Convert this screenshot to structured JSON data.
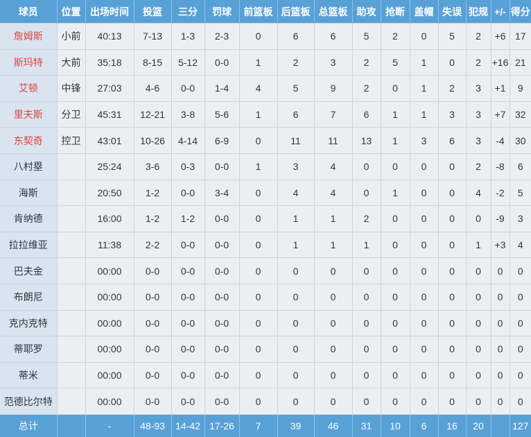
{
  "colors": {
    "header_bg": "#58a1d7",
    "total_bg": "#58a1d7",
    "row_bg": "#ebeff4",
    "player_col_bg": "#d9e4f0",
    "grid": "#ccd3db",
    "header_sep": "#8fc0e7",
    "starter_red": "#dd4540",
    "text_dark": "#2f353d",
    "header_text": "#ffffff"
  },
  "table": {
    "columns": [
      {
        "key": "player",
        "label": "球员"
      },
      {
        "key": "position",
        "label": "位置"
      },
      {
        "key": "minutes",
        "label": "出场时间"
      },
      {
        "key": "fg",
        "label": "投篮"
      },
      {
        "key": "three",
        "label": "三分"
      },
      {
        "key": "ft",
        "label": "罚球"
      },
      {
        "key": "oreb",
        "label": "前篮板"
      },
      {
        "key": "dreb",
        "label": "后篮板"
      },
      {
        "key": "treb",
        "label": "总篮板"
      },
      {
        "key": "ast",
        "label": "助攻"
      },
      {
        "key": "stl",
        "label": "抢断"
      },
      {
        "key": "blk",
        "label": "盖帽"
      },
      {
        "key": "tov",
        "label": "失误"
      },
      {
        "key": "pf",
        "label": "犯规"
      },
      {
        "key": "plusminus",
        "label": "+/-"
      },
      {
        "key": "pts",
        "label": "得分"
      }
    ],
    "rows": [
      {
        "player": "詹姆斯",
        "starter": true,
        "position": "小前",
        "minutes": "40:13",
        "fg": "7-13",
        "three": "1-3",
        "ft": "2-3",
        "oreb": "0",
        "dreb": "6",
        "treb": "6",
        "ast": "5",
        "stl": "2",
        "blk": "0",
        "tov": "5",
        "pf": "2",
        "plusminus": "+6",
        "pts": "17"
      },
      {
        "player": "斯玛特",
        "starter": true,
        "position": "大前",
        "minutes": "35:18",
        "fg": "8-15",
        "three": "5-12",
        "ft": "0-0",
        "oreb": "1",
        "dreb": "2",
        "treb": "3",
        "ast": "2",
        "stl": "5",
        "blk": "1",
        "tov": "0",
        "pf": "2",
        "plusminus": "+16",
        "pts": "21"
      },
      {
        "player": "艾顿",
        "starter": true,
        "position": "中锋",
        "minutes": "27:03",
        "fg": "4-6",
        "three": "0-0",
        "ft": "1-4",
        "oreb": "4",
        "dreb": "5",
        "treb": "9",
        "ast": "2",
        "stl": "0",
        "blk": "1",
        "tov": "2",
        "pf": "3",
        "plusminus": "+1",
        "pts": "9"
      },
      {
        "player": "里夫斯",
        "starter": true,
        "position": "分卫",
        "minutes": "45:31",
        "fg": "12-21",
        "three": "3-8",
        "ft": "5-6",
        "oreb": "1",
        "dreb": "6",
        "treb": "7",
        "ast": "6",
        "stl": "1",
        "blk": "1",
        "tov": "3",
        "pf": "3",
        "plusminus": "+7",
        "pts": "32"
      },
      {
        "player": "东契奇",
        "starter": true,
        "position": "控卫",
        "minutes": "43:01",
        "fg": "10-26",
        "three": "4-14",
        "ft": "6-9",
        "oreb": "0",
        "dreb": "11",
        "treb": "11",
        "ast": "13",
        "stl": "1",
        "blk": "3",
        "tov": "6",
        "pf": "3",
        "plusminus": "-4",
        "pts": "30"
      },
      {
        "player": "八村塁",
        "starter": false,
        "position": "",
        "minutes": "25:24",
        "fg": "3-6",
        "three": "0-3",
        "ft": "0-0",
        "oreb": "1",
        "dreb": "3",
        "treb": "4",
        "ast": "0",
        "stl": "0",
        "blk": "0",
        "tov": "0",
        "pf": "2",
        "plusminus": "-8",
        "pts": "6"
      },
      {
        "player": "海斯",
        "starter": false,
        "position": "",
        "minutes": "20:50",
        "fg": "1-2",
        "three": "0-0",
        "ft": "3-4",
        "oreb": "0",
        "dreb": "4",
        "treb": "4",
        "ast": "0",
        "stl": "1",
        "blk": "0",
        "tov": "0",
        "pf": "4",
        "plusminus": "-2",
        "pts": "5"
      },
      {
        "player": "肯纳德",
        "starter": false,
        "position": "",
        "minutes": "16:00",
        "fg": "1-2",
        "three": "1-2",
        "ft": "0-0",
        "oreb": "0",
        "dreb": "1",
        "treb": "1",
        "ast": "2",
        "stl": "0",
        "blk": "0",
        "tov": "0",
        "pf": "0",
        "plusminus": "-9",
        "pts": "3"
      },
      {
        "player": "拉拉维亚",
        "starter": false,
        "position": "",
        "minutes": "11:38",
        "fg": "2-2",
        "three": "0-0",
        "ft": "0-0",
        "oreb": "0",
        "dreb": "1",
        "treb": "1",
        "ast": "1",
        "stl": "0",
        "blk": "0",
        "tov": "0",
        "pf": "1",
        "plusminus": "+3",
        "pts": "4"
      },
      {
        "player": "巴夫金",
        "starter": false,
        "position": "",
        "minutes": "00:00",
        "fg": "0-0",
        "three": "0-0",
        "ft": "0-0",
        "oreb": "0",
        "dreb": "0",
        "treb": "0",
        "ast": "0",
        "stl": "0",
        "blk": "0",
        "tov": "0",
        "pf": "0",
        "plusminus": "0",
        "pts": "0"
      },
      {
        "player": "布朗尼",
        "starter": false,
        "position": "",
        "minutes": "00:00",
        "fg": "0-0",
        "three": "0-0",
        "ft": "0-0",
        "oreb": "0",
        "dreb": "0",
        "treb": "0",
        "ast": "0",
        "stl": "0",
        "blk": "0",
        "tov": "0",
        "pf": "0",
        "plusminus": "0",
        "pts": "0"
      },
      {
        "player": "克内克特",
        "starter": false,
        "position": "",
        "minutes": "00:00",
        "fg": "0-0",
        "three": "0-0",
        "ft": "0-0",
        "oreb": "0",
        "dreb": "0",
        "treb": "0",
        "ast": "0",
        "stl": "0",
        "blk": "0",
        "tov": "0",
        "pf": "0",
        "plusminus": "0",
        "pts": "0"
      },
      {
        "player": "蒂耶罗",
        "starter": false,
        "position": "",
        "minutes": "00:00",
        "fg": "0-0",
        "three": "0-0",
        "ft": "0-0",
        "oreb": "0",
        "dreb": "0",
        "treb": "0",
        "ast": "0",
        "stl": "0",
        "blk": "0",
        "tov": "0",
        "pf": "0",
        "plusminus": "0",
        "pts": "0"
      },
      {
        "player": "蒂米",
        "starter": false,
        "position": "",
        "minutes": "00:00",
        "fg": "0-0",
        "three": "0-0",
        "ft": "0-0",
        "oreb": "0",
        "dreb": "0",
        "treb": "0",
        "ast": "0",
        "stl": "0",
        "blk": "0",
        "tov": "0",
        "pf": "0",
        "plusminus": "0",
        "pts": "0"
      },
      {
        "player": "范德比尔特",
        "starter": false,
        "position": "",
        "minutes": "00:00",
        "fg": "0-0",
        "three": "0-0",
        "ft": "0-0",
        "oreb": "0",
        "dreb": "0",
        "treb": "0",
        "ast": "0",
        "stl": "0",
        "blk": "0",
        "tov": "0",
        "pf": "0",
        "plusminus": "0",
        "pts": "0"
      }
    ],
    "total": {
      "player": "总计",
      "position": "",
      "minutes": "-",
      "fg": "48-93",
      "three": "14-42",
      "ft": "17-26",
      "oreb": "7",
      "dreb": "39",
      "treb": "46",
      "ast": "31",
      "stl": "10",
      "blk": "6",
      "tov": "16",
      "pf": "20",
      "plusminus": "",
      "pts": "127"
    }
  }
}
